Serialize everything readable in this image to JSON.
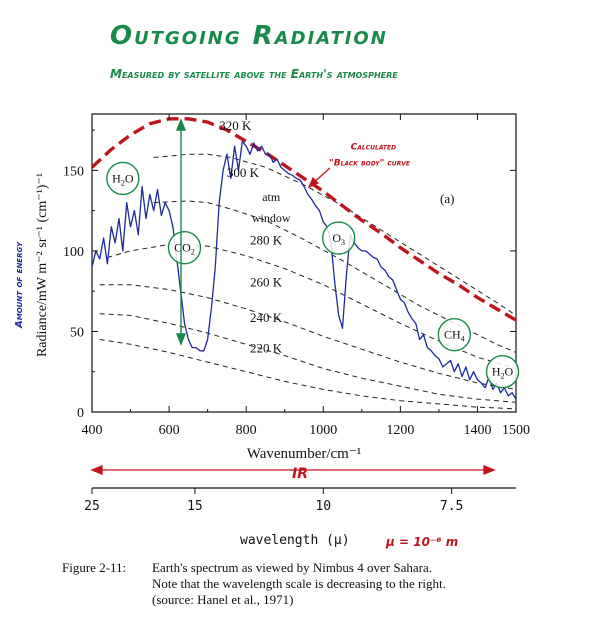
{
  "title": "Outgoing Radiation",
  "subtitle": "Measured by satellite above the Earth's atmosphere",
  "colors": {
    "green": "#1a8a4a",
    "red": "#c0141c",
    "blue": "#1c2a9c",
    "ink": "#111111"
  },
  "chart_data": {
    "type": "line",
    "panel_label": "(a)",
    "xlabel": "Wavenumber/cm⁻¹",
    "ylabel": "Radiance/mW m⁻² sr⁻¹ (cm⁻¹)⁻¹",
    "ylabel_note": "Amount of energy",
    "xlim": [
      400,
      1500
    ],
    "ylim": [
      0,
      185
    ],
    "xticks": [
      400,
      600,
      800,
      1000,
      1200,
      1400,
      1500
    ],
    "yticks": [
      0,
      50,
      100,
      150
    ],
    "series": [
      {
        "name": "Nimbus 4 spectrum",
        "x": [
          400,
          410,
          420,
          430,
          440,
          450,
          460,
          470,
          480,
          490,
          500,
          510,
          520,
          530,
          540,
          550,
          560,
          570,
          580,
          590,
          600,
          610,
          620,
          630,
          640,
          650,
          660,
          670,
          680,
          690,
          700,
          710,
          720,
          730,
          740,
          750,
          760,
          770,
          780,
          790,
          800,
          810,
          820,
          830,
          840,
          850,
          860,
          870,
          880,
          890,
          900,
          910,
          920,
          930,
          940,
          950,
          960,
          970,
          980,
          990,
          1000,
          1010,
          1020,
          1030,
          1040,
          1050,
          1060,
          1070,
          1080,
          1090,
          1100,
          1110,
          1120,
          1130,
          1140,
          1150,
          1160,
          1170,
          1180,
          1190,
          1200,
          1210,
          1220,
          1230,
          1240,
          1250,
          1260,
          1270,
          1280,
          1290,
          1300,
          1310,
          1320,
          1330,
          1340,
          1350,
          1360,
          1370,
          1380,
          1390,
          1400,
          1410,
          1420,
          1430,
          1440,
          1450,
          1460,
          1470,
          1480,
          1490,
          1500
        ],
        "y": [
          90,
          100,
          95,
          108,
          92,
          115,
          105,
          120,
          100,
          130,
          115,
          125,
          110,
          140,
          120,
          135,
          125,
          138,
          122,
          130,
          125,
          115,
          95,
          75,
          55,
          45,
          40,
          40,
          38,
          38,
          45,
          65,
          90,
          130,
          150,
          160,
          145,
          165,
          150,
          168,
          165,
          160,
          167,
          162,
          165,
          160,
          160,
          155,
          157,
          152,
          150,
          148,
          147,
          145,
          144,
          140,
          135,
          132,
          128,
          125,
          118,
          115,
          105,
          80,
          60,
          52,
          85,
          110,
          105,
          102,
          100,
          100,
          98,
          96,
          95,
          90,
          88,
          84,
          82,
          76,
          70,
          68,
          62,
          58,
          55,
          45,
          48,
          40,
          38,
          35,
          33,
          28,
          30,
          32,
          25,
          30,
          22,
          28,
          20,
          25,
          20,
          18,
          15,
          22,
          14,
          18,
          12,
          15,
          10,
          12,
          8
        ]
      },
      {
        "name": "Calculated black body curve",
        "x": [
          400,
          450,
          500,
          550,
          600,
          650,
          700,
          750,
          800,
          850,
          900,
          950,
          1000,
          1050,
          1100,
          1150,
          1200,
          1250,
          1300,
          1350,
          1400,
          1450,
          1500
        ],
        "y": [
          152,
          163,
          172,
          179,
          182,
          182,
          180,
          175,
          168,
          161,
          153,
          145,
          137,
          128,
          119,
          111,
          102,
          94,
          86,
          79,
          71,
          64,
          57
        ]
      }
    ],
    "isotherms": [
      {
        "label": "320 K",
        "label_x": 730,
        "label_y": 175
      },
      {
        "label": "300 K",
        "label_x": 750,
        "label_y": 146
      },
      {
        "label": "280 K",
        "label_x": 810,
        "label_y": 104
      },
      {
        "label": "260 K",
        "label_x": 810,
        "label_y": 78
      },
      {
        "label": "240 K",
        "label_x": 810,
        "label_y": 56
      },
      {
        "label": "220 K",
        "label_x": 810,
        "label_y": 37
      }
    ],
    "isotherm_curves": [
      {
        "x": [
          560,
          650,
          700,
          760,
          850,
          950,
          1050,
          1150,
          1250,
          1350,
          1450,
          1500
        ],
        "y": [
          158,
          160,
          160,
          158,
          152,
          141,
          128,
          113,
          98,
          83,
          68,
          60
        ]
      },
      {
        "x": [
          560,
          650,
          700,
          760,
          850,
          950,
          1050,
          1150,
          1250,
          1350,
          1450,
          1500
        ],
        "y": [
          130,
          131,
          130,
          126,
          119,
          107,
          94,
          80,
          66,
          54,
          42,
          37
        ]
      },
      {
        "x": [
          440,
          500,
          600,
          700,
          800,
          900,
          1000,
          1100,
          1200,
          1300,
          1400,
          1500
        ],
        "y": [
          96,
          100,
          104,
          103,
          97,
          89,
          79,
          67,
          55,
          44,
          34,
          27
        ]
      },
      {
        "x": [
          420,
          500,
          600,
          700,
          800,
          900,
          1000,
          1100,
          1200,
          1300,
          1400,
          1500
        ],
        "y": [
          79,
          79,
          76,
          71,
          64,
          56,
          47,
          39,
          31,
          24,
          18,
          14
        ]
      },
      {
        "x": [
          420,
          500,
          600,
          700,
          800,
          900,
          1000,
          1100,
          1200,
          1300,
          1400,
          1500
        ],
        "y": [
          61,
          60,
          55,
          49,
          42,
          35,
          27,
          21,
          16,
          11,
          8,
          6
        ]
      },
      {
        "x": [
          420,
          500,
          600,
          700,
          800,
          900,
          1000,
          1100,
          1200,
          1300,
          1400,
          1500
        ],
        "y": [
          45,
          42,
          37,
          31,
          25,
          19,
          14,
          10,
          7,
          5,
          3,
          2
        ]
      }
    ],
    "annotations": [
      {
        "text": "atm",
        "x": 865,
        "y": 131
      },
      {
        "text": "window",
        "x": 865,
        "y": 118
      },
      {
        "text": "Calculated",
        "x": 1130,
        "y": 163
      },
      {
        "text": "\"Black body\" curve",
        "x": 1120,
        "y": 153
      }
    ],
    "gas_labels": [
      {
        "main": "H",
        "sub": "2",
        "tail": "O",
        "x": 480,
        "y": 145
      },
      {
        "main": "CO",
        "sub": "2",
        "tail": "",
        "x": 640,
        "y": 102
      },
      {
        "main": "O",
        "sub": "3",
        "tail": "",
        "x": 1040,
        "y": 108
      },
      {
        "main": "CH",
        "sub": "4",
        "tail": "",
        "x": 1340,
        "y": 48
      },
      {
        "main": "H",
        "sub": "2",
        "tail": "O",
        "x": 1465,
        "y": 25
      }
    ],
    "wavelength_axis": {
      "label": "wavelength (µ)",
      "note": "µ = 10⁻⁶ m",
      "ticks": [
        {
          "label": "25",
          "wavenumber": 400
        },
        {
          "label": "15",
          "wavenumber": 667
        },
        {
          "label": "10",
          "wavenumber": 1000
        },
        {
          "label": "7.5",
          "wavenumber": 1333
        }
      ],
      "ir_label": "IR"
    }
  },
  "caption": {
    "figure": "Figure 2-11:",
    "line1": "Earth's spectrum as viewed by Nimbus 4 over Sahara.",
    "line2": "Note that the wavelength scale is decreasing to the right.",
    "line3": "(source:  Hanel et al., 1971)"
  }
}
